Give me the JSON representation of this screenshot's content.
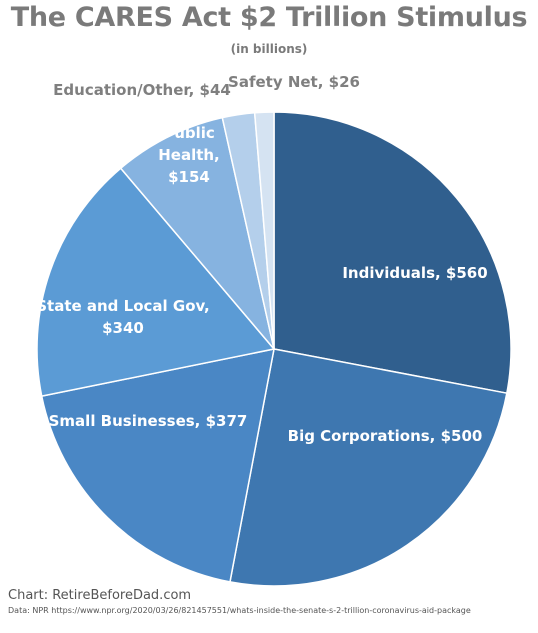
{
  "chart_data": {
    "type": "pie",
    "title": "The CARES Act $2 Trillion Stimulus",
    "subtitle": "(in billions)",
    "slices": [
      {
        "label": "Individuals, $560",
        "value": 560,
        "color": "#305f8e"
      },
      {
        "label": "Big Corporations, $500",
        "value": 500,
        "color": "#3e77b0"
      },
      {
        "label": "Small Businesses, $377",
        "value": 377,
        "color": "#4a87c5"
      },
      {
        "label": "State and Local Gov, $340",
        "value": 340,
        "color": "#5b9bd5"
      },
      {
        "label": "Public Health, $154",
        "value": 154,
        "color": "#86b3e0"
      },
      {
        "label": "Education/Other, $44",
        "value": 44,
        "color": "#b4cfeb"
      },
      {
        "label": "Safety Net, $26",
        "value": 26,
        "color": "#d5e3f2"
      }
    ]
  },
  "footer": {
    "credit": "Chart: RetireBeforeDad.com",
    "source_prefix": "Data: NPR",
    "source_url": "https://www.npr.org/2020/03/26/821457551/whats-inside-the-senate-s-2-trillion-coronavirus-aid-package"
  }
}
